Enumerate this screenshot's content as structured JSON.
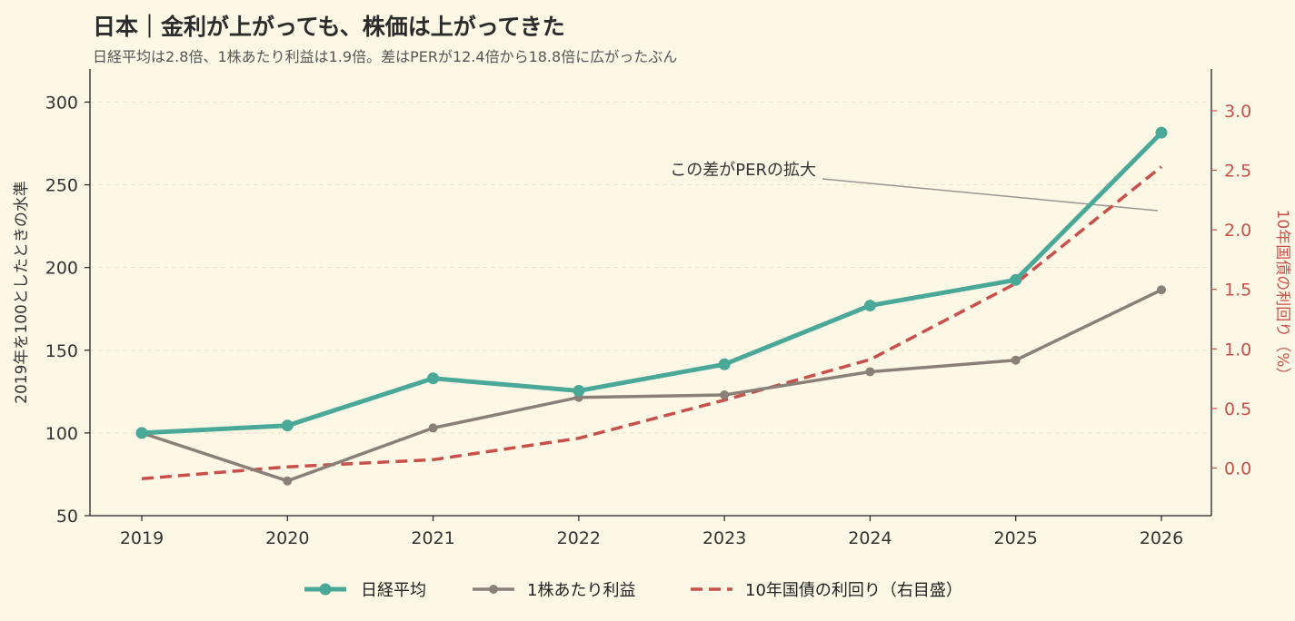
{
  "title": "日本｜金利が上がっても、株価は上がってきた",
  "subtitle": "日経平均は2.8倍、1株あたり利益は1.9倍。差はPERが12.4倍から18.8倍に広がったぶん",
  "colors": {
    "background": "#fdf8e6",
    "nikkei": "#4aa898",
    "eps": "#8a8077",
    "yield": "#c8504a"
  },
  "chart_data": {
    "type": "line",
    "categories": [
      "2019",
      "2020",
      "2021",
      "2022",
      "2023",
      "2024",
      "2025",
      "2026"
    ],
    "ylabel": "2019年を100としたときの水準",
    "ylim": [
      50,
      320
    ],
    "y_ticks": [
      "50",
      "100",
      "150",
      "200",
      "250",
      "300"
    ],
    "y2label": "10年国債の利回り（%）",
    "y2lim": [
      -0.4,
      3.35
    ],
    "y2_ticks": [
      "0.0",
      "0.5",
      "1.0",
      "1.5",
      "2.0",
      "2.5",
      "3.0"
    ],
    "grid": "horizontal, dashed",
    "legend_position": "bottom-center",
    "series": [
      {
        "name": "日経平均",
        "axis": "left",
        "style": "solid-markers",
        "values": [
          100,
          104.5,
          133,
          125.5,
          141.5,
          177,
          192.5,
          281.5
        ]
      },
      {
        "name": "1株あたり利益",
        "axis": "left",
        "style": "solid-markers",
        "values": [
          100,
          71,
          103,
          121.5,
          123,
          137,
          144,
          186.5
        ]
      },
      {
        "name": "10年国債の利回り（右目盛）",
        "axis": "right",
        "style": "dashed",
        "values": [
          -0.09,
          0.01,
          0.07,
          0.25,
          0.57,
          0.91,
          1.55,
          2.53
        ]
      }
    ],
    "annotation": {
      "text": "この差がPERの拡大"
    }
  }
}
